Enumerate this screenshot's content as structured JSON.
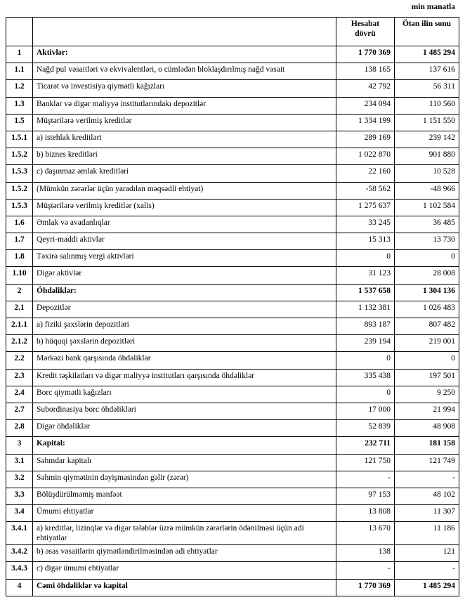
{
  "header": {
    "unit": "min manatla"
  },
  "table": {
    "header": [
      "Hesabat dövrü",
      "Ötən ilin sonu"
    ],
    "rows": [
      [
        "1",
        "Aktivlər:",
        "1 770 369",
        "1 485 294"
      ],
      [
        "1.1",
        "Nağd pul vəsaitləri və ekvivalentləri, o cümlədən bloklaşdırılmış nağd vəsait",
        "138 165",
        "137 616"
      ],
      [
        "1.2",
        "Ticarət və investisiya qiymətli kağızları",
        "42 792",
        "56 311"
      ],
      [
        "1.3",
        "Banklar və digər maliyyə institutlarındakı depozitlər",
        "234 094",
        "110 560"
      ],
      [
        "1.5",
        "Müştərilərə verilmiş kreditlər",
        "1 334 199",
        "1 151 550"
      ],
      [
        "1.5.1",
        "a) istehlak kreditləri",
        "289 169",
        "239 142"
      ],
      [
        "1.5.2",
        "b) biznes kreditləri",
        "1 022 870",
        "901 880"
      ],
      [
        "1.5.3",
        "c) daşınmaz əmlak kreditləri",
        "22 160",
        "10 528"
      ],
      [
        "1.5.2",
        "(Mümkün zərərlər üçün yaradılan məqsədli ehtiyat)",
        "-58 562",
        "-48 966"
      ],
      [
        "1.5.3",
        "Müştərilərə verilmiş kreditlər (xalis)",
        "1 275 637",
        "1 102 584"
      ],
      [
        "1.6",
        "Əmlak və avadanlıqlar",
        "33 245",
        "36 485"
      ],
      [
        "1.7",
        "Qeyri-maddi aktivlər",
        "15 313",
        "13 730"
      ],
      [
        "1.8",
        "Təxirə salınmış vergi aktivləri",
        "0",
        "0"
      ],
      [
        "1.10",
        "Digər aktivlər",
        "31 123",
        "28 008"
      ],
      [
        "2",
        "Öhdəliklər:",
        "1 537 658",
        "1 304 136"
      ],
      [
        "2.1",
        "Depozitlər",
        "1 132 381",
        "1 026 483"
      ],
      [
        "2.1.1",
        "a) fiziki şəxslərin depozitləri",
        "893 187",
        "807 482"
      ],
      [
        "2.1.2",
        "b) hüquqi şəxslərin depozitləri",
        "239 194",
        "219 001"
      ],
      [
        "2.2",
        "Mərkəzi bank qarşısında öhdəliklər",
        "0",
        "0"
      ],
      [
        "2.3",
        "Kredit təşkilatları və digər maliyyə institutları qarşısında öhdəliklər",
        "335 438",
        "197 501"
      ],
      [
        "2.4",
        "Borc qiymətli kağızları",
        "0",
        "9 250"
      ],
      [
        "2.7",
        "Subordinasiya borc öhdəlikləri",
        "17 000",
        "21 994"
      ],
      [
        "2.8",
        "Digər öhdəliklər",
        "52 839",
        "48 908"
      ],
      [
        "3",
        "Kapital:",
        "232 711",
        "181 158"
      ],
      [
        "3.1",
        "Səhmdar kapitalı",
        "121 750",
        "121 749"
      ],
      [
        "3.2",
        "Səhmin qiymətinin dəyişməsindən gəlir (zərər)",
        "-",
        "-"
      ],
      [
        "3.3",
        "Bölüşdürülməmiş mənfəət",
        "97 153",
        "48 102"
      ],
      [
        "3.4",
        "Ümumi ehtiyatlar",
        "13 808",
        "11 307"
      ],
      [
        "3.4.1",
        "a) kreditlər, lizinqlər və digər tələblər üzrə mümkün zərərlərin ödənilməsi üçün adi ehtiyatlar",
        "13 670",
        "11 186"
      ],
      [
        "3.4.2",
        "b) əsas vəsaitlərin qiymətləndirilməsindən adi ehtiyatlar",
        "138",
        "121"
      ],
      [
        "3.4.3",
        "c) digər ümumi ehtiyatlar",
        "-",
        "-"
      ],
      [
        "4",
        "Cəmi öhdəliklər və kapital",
        "1 770 369",
        "1 485 294"
      ]
    ]
  }
}
